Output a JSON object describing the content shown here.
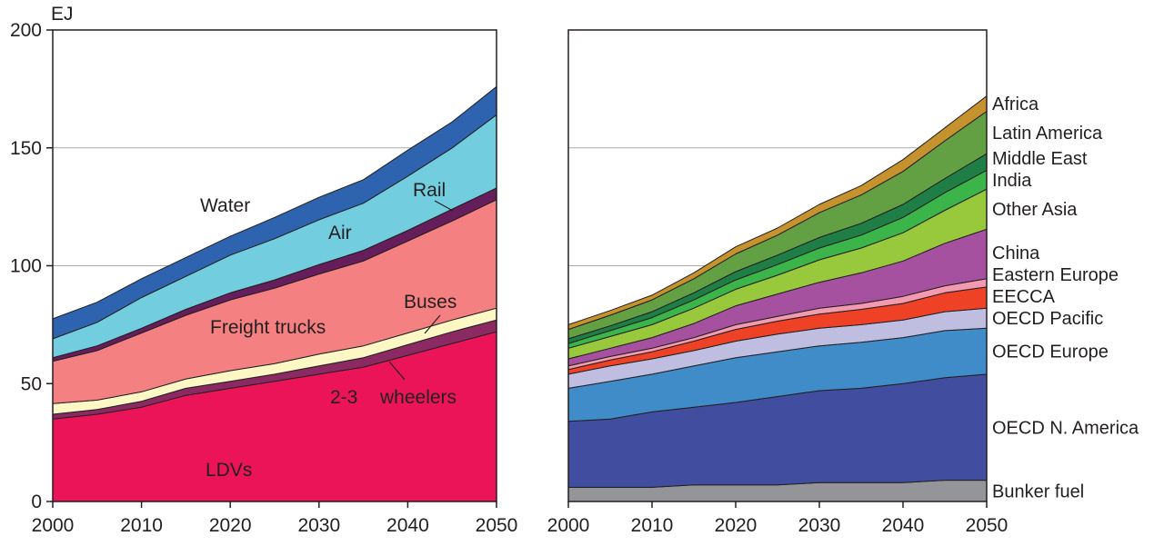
{
  "chart_data": [
    {
      "type": "area",
      "stacked": true,
      "ylabel": "EJ",
      "xlim": [
        2000,
        2050
      ],
      "ylim": [
        0,
        200
      ],
      "yticks": [
        "0",
        "50",
        "100",
        "150",
        "200"
      ],
      "xticks": [
        "2000",
        "2010",
        "2020",
        "2030",
        "2040",
        "2050"
      ],
      "grid": "horizontal",
      "x": [
        2000,
        2005,
        2010,
        2015,
        2020,
        2025,
        2030,
        2035,
        2040,
        2045,
        2050
      ],
      "series": [
        {
          "name": "LDVs",
          "color": "#ec1459",
          "values": [
            35,
            37,
            40,
            45,
            48,
            51,
            54,
            57,
            62,
            67,
            72
          ]
        },
        {
          "name": "2-3 wheelers",
          "color": "#8b2a62",
          "values": [
            2,
            2,
            2.5,
            3,
            3,
            3,
            3.5,
            4,
            4.5,
            5,
            5
          ]
        },
        {
          "name": "Buses",
          "color": "#fcf7c4",
          "values": [
            4.5,
            4,
            4,
            4,
            4.5,
            4.5,
            5,
            5,
            5,
            5,
            5
          ]
        },
        {
          "name": "Freight trucks",
          "color": "#f58081",
          "values": [
            18,
            21,
            25,
            27,
            30,
            32,
            34,
            36,
            39,
            42,
            46
          ]
        },
        {
          "name": "Rail",
          "color": "#651d5c",
          "values": [
            1.5,
            2,
            2,
            2.5,
            3,
            3.5,
            4,
            4.5,
            4.5,
            5,
            5
          ]
        },
        {
          "name": "Air",
          "color": "#72cedf",
          "values": [
            8,
            10,
            13,
            14,
            16,
            17.5,
            19,
            20,
            23,
            26,
            31
          ]
        },
        {
          "name": "Water",
          "color": "#2e63b0",
          "values": [
            8.5,
            8.5,
            8,
            8,
            8,
            9,
            9.5,
            10,
            11,
            11,
            12
          ]
        }
      ],
      "labels": {
        "water": "Water",
        "air": "Air",
        "rail": "Rail",
        "buses": "Buses",
        "freight": "Freight trucks",
        "wheelers_a": "2-3",
        "wheelers_b": "wheelers",
        "ldvs": "LDVs"
      }
    },
    {
      "type": "area",
      "stacked": true,
      "xlim": [
        2000,
        2050
      ],
      "ylim": [
        0,
        200
      ],
      "xticks": [
        "2000",
        "2010",
        "2020",
        "2030",
        "2040",
        "2050"
      ],
      "grid": "horizontal",
      "legend": "right",
      "x": [
        2000,
        2005,
        2010,
        2015,
        2020,
        2025,
        2030,
        2035,
        2040,
        2045,
        2050
      ],
      "series": [
        {
          "name": "Bunker fuel",
          "color": "#939598",
          "values": [
            6,
            6,
            6,
            7,
            7,
            7,
            8,
            8,
            8,
            9,
            9
          ]
        },
        {
          "name": "OECD N. America",
          "color": "#414ea0",
          "values": [
            28,
            29,
            32,
            33,
            35,
            37.5,
            39,
            40,
            42,
            43.5,
            45
          ]
        },
        {
          "name": "OECD Europe",
          "color": "#3f8cc9",
          "values": [
            14,
            16,
            16,
            17.5,
            19,
            19,
            19,
            19.5,
            19.5,
            20,
            19.5
          ]
        },
        {
          "name": "OECD Pacific",
          "color": "#c0bee0",
          "values": [
            6,
            6.5,
            6.5,
            6.5,
            7,
            7.5,
            7.5,
            7.5,
            7.5,
            8,
            8.5
          ]
        },
        {
          "name": "EECCA",
          "color": "#ee4125",
          "values": [
            2,
            2.5,
            3,
            4,
            5,
            5.5,
            6,
            6.5,
            7,
            8,
            9
          ]
        },
        {
          "name": "Eastern Europe",
          "color": "#f49ab0",
          "values": [
            1.5,
            1.5,
            1.5,
            1.5,
            2,
            2,
            2.5,
            2.5,
            3,
            3,
            3.5
          ]
        },
        {
          "name": "China",
          "color": "#a6519f",
          "values": [
            3,
            3.5,
            4.5,
            6,
            8,
            9.5,
            11,
            13,
            15,
            18,
            21
          ]
        },
        {
          "name": "Other Asia",
          "color": "#98c93c",
          "values": [
            4.5,
            5,
            5.5,
            6.5,
            7,
            8,
            9.5,
            10.5,
            12,
            14,
            17
          ]
        },
        {
          "name": "India",
          "color": "#3bb44a",
          "values": [
            2,
            2.5,
            3,
            3.5,
            4,
            4.5,
            5,
            5.5,
            6.5,
            7.5,
            8
          ]
        },
        {
          "name": "Middle East",
          "color": "#1f7e45",
          "values": [
            2,
            2,
            2.5,
            3,
            3.5,
            4,
            4.5,
            5,
            5.5,
            6,
            7
          ]
        },
        {
          "name": "Latin America",
          "color": "#63a044",
          "values": [
            4,
            4.5,
            5,
            6,
            7.5,
            8.5,
            10.5,
            12,
            14,
            16,
            18
          ]
        },
        {
          "name": "Africa",
          "color": "#c6922e",
          "values": [
            2,
            2,
            2,
            2.5,
            3,
            3,
            3.5,
            4,
            5,
            5.5,
            6.5
          ]
        }
      ]
    }
  ]
}
